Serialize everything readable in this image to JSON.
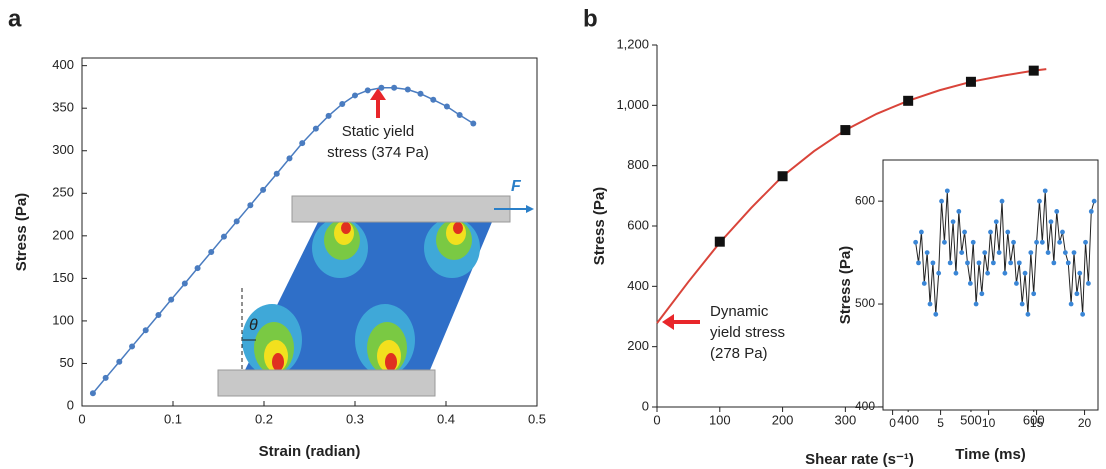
{
  "chart_data": [
    {
      "type": "line",
      "panel_label": "a",
      "x_label": "Strain (radian)",
      "y_label": "Stress (Pa)",
      "x": [
        0.012,
        0.026,
        0.041,
        0.055,
        0.07,
        0.084,
        0.098,
        0.113,
        0.127,
        0.142,
        0.156,
        0.17,
        0.185,
        0.199,
        0.214,
        0.228,
        0.242,
        0.257,
        0.271,
        0.286,
        0.3,
        0.314,
        0.329,
        0.343,
        0.358,
        0.372,
        0.386,
        0.401,
        0.415,
        0.43
      ],
      "values": [
        15,
        33,
        52,
        70,
        89,
        107,
        125,
        144,
        162,
        181,
        199,
        217,
        236,
        254,
        273,
        291,
        309,
        326,
        341,
        355,
        365,
        371,
        374,
        374,
        372,
        367,
        360,
        352,
        342,
        332
      ],
      "color": "#4a7cc0",
      "xlim": [
        0,
        0.5
      ],
      "ylim": [
        0,
        409
      ],
      "xticks": [
        0,
        0.1,
        0.2,
        0.3,
        0.4,
        0.5
      ],
      "yticks": [
        0,
        50,
        100,
        150,
        200,
        250,
        300,
        350,
        400
      ],
      "annotation": [
        "Static yield",
        "stress (374 Pa)"
      ],
      "diagram_labels": {
        "angle": "θ",
        "force": "F"
      }
    },
    {
      "type": "scatter",
      "panel_label": "b",
      "x_label": "Shear rate (s⁻¹)",
      "y_label": "Stress (Pa)",
      "series": [
        {
          "kind": "line",
          "color": "#d9443a",
          "x": [
            0,
            50,
            100,
            150,
            200,
            250,
            300,
            350,
            400,
            450,
            500,
            550,
            600,
            620
          ],
          "values": [
            278,
            415,
            545,
            660,
            765,
            848,
            918,
            972,
            1015,
            1050,
            1078,
            1098,
            1115,
            1120
          ]
        },
        {
          "kind": "points",
          "color": "#111111",
          "x": [
            100,
            200,
            300,
            400,
            500,
            600
          ],
          "values": [
            548,
            765,
            918,
            1015,
            1078,
            1115
          ]
        }
      ],
      "xlim": [
        0,
        645
      ],
      "ylim": [
        0,
        1200
      ],
      "xticks": [
        0,
        100,
        200,
        300,
        400,
        500,
        600
      ],
      "yticks": [
        0,
        200,
        400,
        600,
        800,
        {
          "value": 1000,
          "label": "1,000"
        },
        {
          "value": 1200,
          "label": "1,200"
        }
      ],
      "annotation": [
        "Dynamic",
        "yield stress",
        "(278 Pa)"
      ]
    },
    {
      "type": "line",
      "x_label": "Time (ms)",
      "y_label": "Stress (Pa)",
      "x": [
        2.4,
        2.7,
        3.0,
        3.3,
        3.6,
        3.9,
        4.2,
        4.5,
        4.8,
        5.1,
        5.4,
        5.7,
        6.0,
        6.3,
        6.6,
        6.9,
        7.2,
        7.5,
        7.8,
        8.1,
        8.4,
        8.7,
        9.0,
        9.3,
        9.6,
        9.9,
        10.2,
        10.5,
        10.8,
        11.1,
        11.4,
        11.7,
        12.0,
        12.3,
        12.6,
        12.9,
        13.2,
        13.5,
        13.8,
        14.1,
        14.4,
        14.7,
        15.0,
        15.3,
        15.6,
        15.9,
        16.2,
        16.5,
        16.8,
        17.1,
        17.4,
        17.7,
        18.0,
        18.3,
        18.6,
        18.9,
        19.2,
        19.5,
        19.8,
        20.1,
        20.4,
        20.7,
        21.0
      ],
      "values": [
        560,
        540,
        570,
        520,
        550,
        500,
        540,
        490,
        530,
        600,
        560,
        610,
        540,
        580,
        530,
        590,
        550,
        570,
        540,
        520,
        560,
        500,
        540,
        510,
        550,
        530,
        570,
        540,
        580,
        550,
        600,
        530,
        570,
        540,
        560,
        520,
        540,
        500,
        530,
        490,
        550,
        510,
        560,
        600,
        560,
        610,
        550,
        580,
        540,
        590,
        560,
        570,
        550,
        540,
        500,
        550,
        510,
        530,
        490,
        560,
        520,
        590,
        600
      ],
      "color": "#3a86d6",
      "line_color": "#222222",
      "xlim": [
        -1,
        21.4
      ],
      "ylim": [
        397,
        640
      ],
      "xticks": [
        0,
        5,
        10,
        15,
        20
      ],
      "yticks": [
        400,
        500,
        600
      ]
    }
  ]
}
